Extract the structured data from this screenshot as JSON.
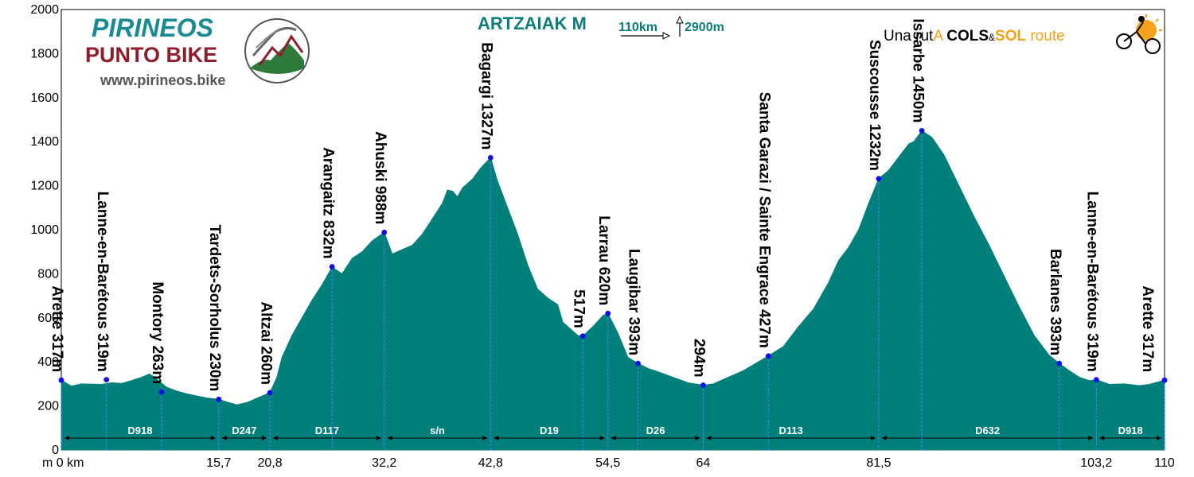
{
  "header": {
    "title": "ARTZAIAK M",
    "distance": "110km",
    "climb": "2900m"
  },
  "brand": {
    "line1": "PIRINEOS",
    "line2": "PUNTO BIKE",
    "url": "www.pirineos.bike"
  },
  "tagline": {
    "part1": "Una rut",
    "part2": "A",
    "part3": "COLS",
    "part4": "&",
    "part5": "SOL",
    "part6": "route"
  },
  "colors": {
    "profile": "#007f7b",
    "waypoint": "#1010ee",
    "title": "#0e7d7a",
    "brand_teal": "#1b8a93",
    "brand_red": "#8e1e2c",
    "tag_orange": "#f4a11c"
  },
  "chart_data": {
    "type": "area",
    "xlim": [
      0,
      110
    ],
    "ylim": [
      0,
      2000
    ],
    "ylabel_unit": "m",
    "xlabel_unit": "km",
    "y_ticks": [
      0,
      200,
      400,
      600,
      800,
      1000,
      1200,
      1400,
      1600,
      1800,
      2000
    ],
    "x_tick_labels": [
      "m 0 km",
      "15,7",
      "20,8",
      "32,2",
      "42,8",
      "54,5",
      "64",
      "81,5",
      "103,2",
      "110"
    ],
    "x_ticks": [
      0,
      15.7,
      20.8,
      32.2,
      42.8,
      54.5,
      64,
      81.5,
      103.2,
      110
    ],
    "profile": [
      [
        0,
        317
      ],
      [
        1,
        290
      ],
      [
        2,
        300
      ],
      [
        4,
        298
      ],
      [
        5,
        305
      ],
      [
        6,
        302
      ],
      [
        7,
        315
      ],
      [
        8,
        330
      ],
      [
        8.8,
        345
      ],
      [
        9.5,
        322
      ],
      [
        10.5,
        285
      ],
      [
        11.5,
        268
      ],
      [
        12.5,
        255
      ],
      [
        13.5,
        245
      ],
      [
        14.5,
        236
      ],
      [
        15.7,
        230
      ],
      [
        16.5,
        218
      ],
      [
        17.5,
        205
      ],
      [
        18.5,
        215
      ],
      [
        19.5,
        235
      ],
      [
        20.8,
        260
      ],
      [
        21.5,
        330
      ],
      [
        22,
        420
      ],
      [
        23,
        520
      ],
      [
        24,
        600
      ],
      [
        25,
        680
      ],
      [
        26,
        750
      ],
      [
        27,
        830
      ],
      [
        28,
        800
      ],
      [
        29,
        870
      ],
      [
        30,
        900
      ],
      [
        31,
        950
      ],
      [
        32.2,
        988
      ],
      [
        33,
        890
      ],
      [
        34,
        910
      ],
      [
        35,
        930
      ],
      [
        36,
        980
      ],
      [
        37,
        1050
      ],
      [
        38,
        1120
      ],
      [
        38.5,
        1180
      ],
      [
        39,
        1175
      ],
      [
        39.5,
        1150
      ],
      [
        40,
        1190
      ],
      [
        41,
        1230
      ],
      [
        41.8,
        1280
      ],
      [
        42.8,
        1327
      ],
      [
        43.5,
        1220
      ],
      [
        44.5,
        1100
      ],
      [
        45.5,
        980
      ],
      [
        46.5,
        840
      ],
      [
        47.5,
        730
      ],
      [
        48.5,
        690
      ],
      [
        49.5,
        660
      ],
      [
        50,
        580
      ],
      [
        51.5,
        520
      ],
      [
        52,
        517
      ],
      [
        53,
        560
      ],
      [
        54,
        610
      ],
      [
        54.5,
        620
      ],
      [
        55.5,
        530
      ],
      [
        56.5,
        420
      ],
      [
        57.5,
        393
      ],
      [
        58.5,
        370
      ],
      [
        59.5,
        355
      ],
      [
        61,
        330
      ],
      [
        62.5,
        305
      ],
      [
        64,
        294
      ],
      [
        65,
        300
      ],
      [
        66.5,
        330
      ],
      [
        68,
        360
      ],
      [
        69.5,
        400
      ],
      [
        70.5,
        427
      ],
      [
        72,
        470
      ],
      [
        73.5,
        560
      ],
      [
        75,
        640
      ],
      [
        76.5,
        760
      ],
      [
        77.5,
        860
      ],
      [
        78.5,
        920
      ],
      [
        79.5,
        1000
      ],
      [
        80.5,
        1120
      ],
      [
        81.5,
        1232
      ],
      [
        82.5,
        1270
      ],
      [
        83.5,
        1330
      ],
      [
        84.5,
        1390
      ],
      [
        85,
        1400
      ],
      [
        85.8,
        1450
      ],
      [
        86.8,
        1420
      ],
      [
        88,
        1340
      ],
      [
        89.5,
        1200
      ],
      [
        91,
        1060
      ],
      [
        92.5,
        930
      ],
      [
        94,
        790
      ],
      [
        95.5,
        650
      ],
      [
        97,
        520
      ],
      [
        98.5,
        430
      ],
      [
        99.5,
        393
      ],
      [
        100.5,
        360
      ],
      [
        101.5,
        330
      ],
      [
        102.5,
        315
      ],
      [
        103.2,
        319
      ],
      [
        104.5,
        298
      ],
      [
        106,
        300
      ],
      [
        107.5,
        292
      ],
      [
        108.5,
        298
      ],
      [
        110,
        317
      ]
    ],
    "waypoints": [
      {
        "x": 0,
        "y": 317,
        "label": "Arette 317m",
        "side": "right"
      },
      {
        "x": 4.5,
        "y": 319,
        "label": "Lanne-en-Barétous 319m",
        "side": "right"
      },
      {
        "x": 10,
        "y": 263,
        "label": "Montory 263m",
        "side": "right"
      },
      {
        "x": 15.7,
        "y": 230,
        "label": "Tardets-Sorholus 230m",
        "side": "right"
      },
      {
        "x": 20.8,
        "y": 260,
        "label": "Altzai 260m",
        "side": "right"
      },
      {
        "x": 27,
        "y": 832,
        "label": "Arangaitz 832m",
        "side": "right"
      },
      {
        "x": 32.2,
        "y": 988,
        "label": "Ahuski 988m",
        "side": "right"
      },
      {
        "x": 42.8,
        "y": 1327,
        "label": "Bagargi 1327m",
        "side": "right"
      },
      {
        "x": 52,
        "y": 517,
        "label": "517m",
        "side": "right"
      },
      {
        "x": 54.5,
        "y": 620,
        "label": "Larrau 620m",
        "side": "right"
      },
      {
        "x": 57.5,
        "y": 393,
        "label": "Laugibar 393m",
        "side": "right"
      },
      {
        "x": 64,
        "y": 294,
        "label": "294m",
        "side": "right"
      },
      {
        "x": 70.5,
        "y": 427,
        "label": "Santa Garazi / Sainte Engrace 427m",
        "side": "right"
      },
      {
        "x": 81.5,
        "y": 1232,
        "label": "Suscousse 1232m",
        "side": "right"
      },
      {
        "x": 85.8,
        "y": 1450,
        "label": "Issarbe 1450m",
        "side": "right"
      },
      {
        "x": 99.5,
        "y": 393,
        "label": "Barlanes 393m",
        "side": "right"
      },
      {
        "x": 103.2,
        "y": 319,
        "label": "Lanne-en-Barétous 319m",
        "side": "right"
      },
      {
        "x": 110,
        "y": 317,
        "label": "Arette 317m",
        "side": "left"
      }
    ],
    "roads": [
      {
        "from": 0,
        "to": 15.7,
        "name": "D918"
      },
      {
        "from": 15.7,
        "to": 20.8,
        "name": "D247"
      },
      {
        "from": 20.8,
        "to": 32.2,
        "name": "D117"
      },
      {
        "from": 32.2,
        "to": 42.8,
        "name": "s/n"
      },
      {
        "from": 42.8,
        "to": 54.5,
        "name": "D19"
      },
      {
        "from": 54.5,
        "to": 64,
        "name": "D26"
      },
      {
        "from": 64,
        "to": 81.5,
        "name": "D113"
      },
      {
        "from": 81.5,
        "to": 103.2,
        "name": "D632"
      },
      {
        "from": 103.2,
        "to": 110,
        "name": "D918"
      }
    ],
    "grid": false
  }
}
